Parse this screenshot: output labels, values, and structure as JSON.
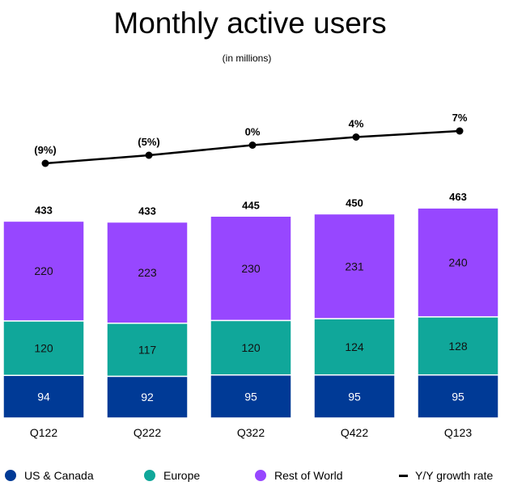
{
  "chart_data": {
    "type": "bar",
    "stacked": true,
    "title": "Monthly active users",
    "subtitle": "(in millions)",
    "categories": [
      "Q122",
      "Q222",
      "Q322",
      "Q422",
      "Q123"
    ],
    "series": [
      {
        "name": "US & Canada",
        "color": "#003A96",
        "values": [
          94,
          92,
          95,
          95,
          95
        ]
      },
      {
        "name": "Europe",
        "color": "#10A79A",
        "values": [
          120,
          117,
          120,
          124,
          128
        ]
      },
      {
        "name": "Rest of World",
        "color": "#9747FF",
        "values": [
          220,
          223,
          230,
          231,
          240
        ]
      }
    ],
    "totals": [
      433,
      433,
      445,
      450,
      463
    ],
    "line": {
      "name": "Y/Y growth rate",
      "color": "#000000",
      "values": [
        -9,
        -5,
        0,
        4,
        7
      ],
      "labels": [
        "(9%)",
        "(5%)",
        "0%",
        "4%",
        "7%"
      ]
    },
    "ylim": [
      0,
      463
    ],
    "grid": false,
    "legend_position": "bottom"
  }
}
